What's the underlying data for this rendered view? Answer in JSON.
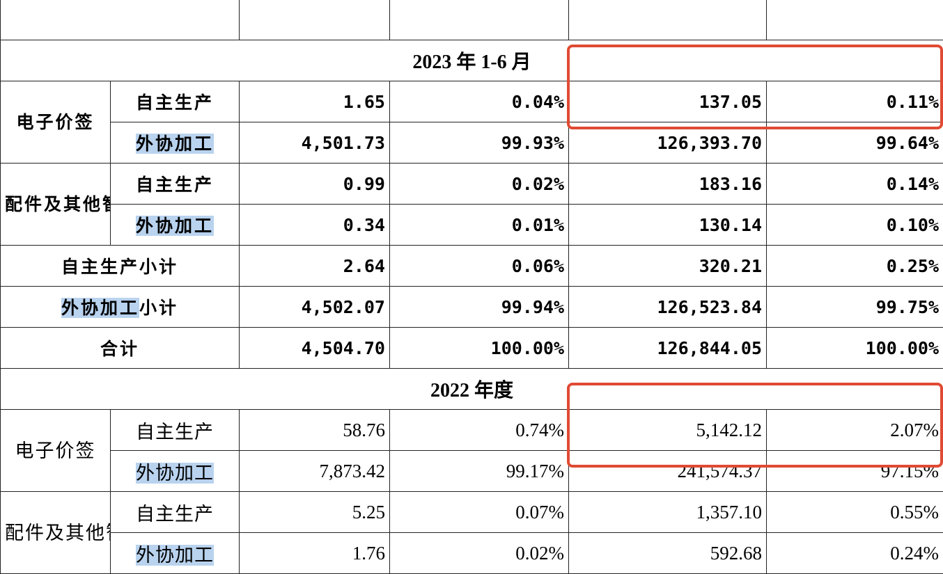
{
  "section1": {
    "title": "2023 年 1-6 月",
    "groups": [
      {
        "name": "电子价签",
        "rows": [
          {
            "label": "自主生产",
            "c1": "1.65",
            "c2": "0.04%",
            "c3": "137.05",
            "c4": "0.11%"
          },
          {
            "label": "外协加工",
            "c1": "4,501.73",
            "c2": "99.93%",
            "c3": "126,393.70",
            "c4": "99.64%"
          }
        ]
      },
      {
        "name": "配件及其他智能硬件",
        "rows": [
          {
            "label": "自主生产",
            "c1": "0.99",
            "c2": "0.02%",
            "c3": "183.16",
            "c4": "0.14%"
          },
          {
            "label": "外协加工",
            "c1": "0.34",
            "c2": "0.01%",
            "c3": "130.14",
            "c4": "0.10%"
          }
        ]
      }
    ],
    "totals": [
      {
        "label": "自主生产小计",
        "c1": "2.64",
        "c2": "0.06%",
        "c3": "320.21",
        "c4": "0.25%"
      },
      {
        "label_hl": "外协加工",
        "label_rest": "小计",
        "c1": "4,502.07",
        "c2": "99.94%",
        "c3": "126,523.84",
        "c4": "99.75%"
      },
      {
        "label": "合计",
        "c1": "4,504.70",
        "c2": "100.00%",
        "c3": "126,844.05",
        "c4": "100.00%"
      }
    ]
  },
  "section2": {
    "title": "2022 年度",
    "groups": [
      {
        "name": "电子价签",
        "rows": [
          {
            "label": "自主生产",
            "c1": "58.76",
            "c2": "0.74%",
            "c3": "5,142.12",
            "c4": "2.07%"
          },
          {
            "label": "外协加工",
            "c1": "7,873.42",
            "c2": "99.17%",
            "c3": "241,574.37",
            "c4": "97.15%"
          }
        ]
      },
      {
        "name": "配件及其他智能硬件",
        "rows": [
          {
            "label": "自主生产",
            "c1": "5.25",
            "c2": "0.07%",
            "c3": "1,357.10",
            "c4": "0.55%"
          },
          {
            "label": "外协加工",
            "c1": "1.76",
            "c2": "0.02%",
            "c3": "592.68",
            "c4": "0.24%"
          }
        ]
      }
    ]
  },
  "colors": {
    "highlight": "#b9d3ef",
    "box": "#e04a33"
  }
}
